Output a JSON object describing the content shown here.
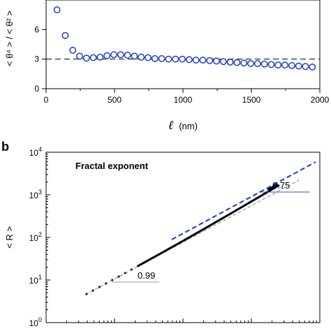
{
  "chart_data": [
    {
      "type": "scatter",
      "panel": "",
      "ylabel": "< θ⁴ > / < θ² >",
      "xlabel_symbol": "ℓ",
      "xlabel_unit": "(nm)",
      "xlim": [
        0,
        2000
      ],
      "ylim": [
        0,
        9
      ],
      "xticks": [
        0,
        500,
        1000,
        1500,
        2000
      ],
      "yticks": [
        0,
        3,
        6
      ],
      "reference_line": {
        "y": 3,
        "style": "dashed"
      },
      "marker_color": "#1f3fbf",
      "series": [
        {
          "x": [
            80,
            140,
            195,
            245,
            295,
            345,
            395,
            445,
            495,
            545,
            595,
            645,
            695,
            745,
            795,
            845,
            895,
            945,
            995,
            1045,
            1095,
            1145,
            1195,
            1245,
            1295,
            1345,
            1395,
            1445,
            1495,
            1545,
            1595,
            1645,
            1695,
            1745,
            1795,
            1845,
            1895,
            1945
          ],
          "y": [
            8.0,
            5.4,
            3.9,
            3.3,
            3.1,
            3.15,
            3.2,
            3.35,
            3.45,
            3.45,
            3.4,
            3.3,
            3.2,
            3.15,
            3.05,
            3.05,
            3.0,
            3.0,
            3.0,
            2.95,
            2.9,
            2.9,
            2.85,
            2.8,
            2.75,
            2.7,
            2.65,
            2.6,
            2.55,
            2.55,
            2.5,
            2.45,
            2.4,
            2.4,
            2.35,
            2.3,
            2.25,
            2.2
          ]
        }
      ]
    },
    {
      "type": "line",
      "panel": "b",
      "title": "Fractal exponent",
      "ylabel": "< R >",
      "yscale": "log",
      "xscale": "log",
      "ylim": [
        1,
        10000
      ],
      "ytick_exponents": [
        0,
        1,
        2,
        3,
        4
      ],
      "annotations": [
        {
          "text": "0.99",
          "color": "#999999"
        },
        {
          "text": "0.75",
          "color": "#3355cc"
        }
      ],
      "fits": [
        {
          "slope": 0.99,
          "color": "#999999",
          "style": "dashed"
        },
        {
          "slope": 0.75,
          "color": "#1a3fb8",
          "style": "dashed"
        }
      ],
      "data_color": "#000000"
    }
  ]
}
